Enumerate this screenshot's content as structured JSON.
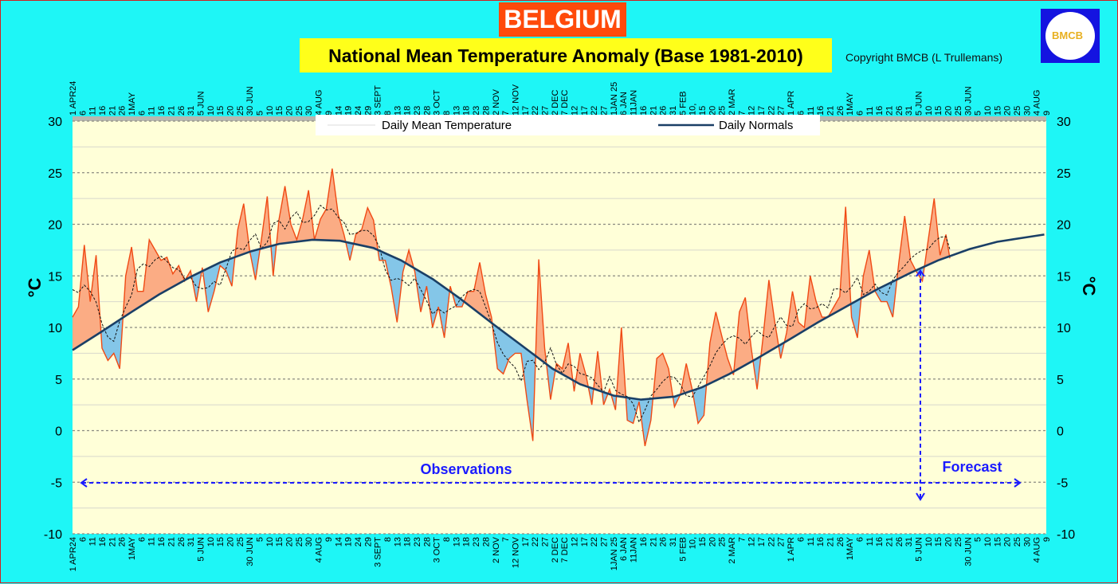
{
  "header": {
    "country": "BELGIUM",
    "title": "National Mean Temperature Anomaly (Base 1981-2010)",
    "copyright": "Copyright BMCB (L Trullemans)",
    "logo_text": "BMCB"
  },
  "colors": {
    "background": "#1ef6f6",
    "plot_bg": "#ffffd8",
    "above_normal": "#fbac84",
    "below_normal": "#84c6e8",
    "temperature_line": "#f04a14",
    "normals_line": "#1a3f66",
    "annotation": "#1a1aff"
  },
  "chart_data": {
    "type": "area",
    "ylabel": "°C",
    "ylim": [
      -10,
      30
    ],
    "yticks": [
      -10,
      -5,
      0,
      5,
      10,
      15,
      20,
      25,
      30
    ],
    "grid": true,
    "legend_position": "top",
    "legend": [
      {
        "label": "Daily Mean Temperature"
      },
      {
        "label": "Daily Normals"
      }
    ],
    "xlim": [
      "2024-04-01",
      "2025-08-09"
    ],
    "x_tick_labels": [
      "1 APR24",
      "6",
      "11",
      "16",
      "21",
      "26",
      "1MAY",
      "6",
      "11",
      "16",
      "21",
      "26",
      "31",
      "5 JUN",
      "10",
      "15",
      "20",
      "25",
      "30 JUN",
      "5",
      "10",
      "15",
      "20",
      "25",
      "30",
      "4 AUG",
      "9",
      "14",
      "19",
      "24",
      "29",
      "3 SEPT",
      "8",
      "13",
      "18",
      "23",
      "28",
      "3 OCT",
      "8",
      "13",
      "18",
      "23",
      "28",
      "2 NOV",
      "7",
      "12 NOV",
      "17",
      "22",
      "27",
      "2 DEC",
      "7 DEC",
      "12",
      "17",
      "22",
      "27",
      "1JAN 25",
      "6 JAN",
      "11JAN",
      "16",
      "21",
      "26",
      "31",
      "5 FEB",
      "10,",
      "15",
      "20",
      "25",
      "2 MAR",
      "7",
      "12",
      "17",
      "22",
      "27",
      "1 APR",
      "6",
      "11",
      "16",
      "21",
      "26",
      "1MAY",
      "6",
      "11",
      "16",
      "21",
      "26",
      "31",
      "5 JUN",
      "10",
      "15",
      "20",
      "25",
      "30 JUN",
      "5",
      "10",
      "15",
      "20",
      "25",
      "30",
      "4 AUG",
      "9"
    ],
    "series": [
      {
        "name": "Daily Mean Temperature",
        "points": [
          [
            "2024-04-01",
            11
          ],
          [
            "2024-04-04",
            12
          ],
          [
            "2024-04-07",
            18
          ],
          [
            "2024-04-10",
            12.5
          ],
          [
            "2024-04-13",
            17
          ],
          [
            "2024-04-16",
            8
          ],
          [
            "2024-04-19",
            6.8
          ],
          [
            "2024-04-22",
            7.5
          ],
          [
            "2024-04-25",
            6
          ],
          [
            "2024-04-28",
            15
          ],
          [
            "2024-05-01",
            17.8
          ],
          [
            "2024-05-04",
            13.5
          ],
          [
            "2024-05-07",
            13.5
          ],
          [
            "2024-05-10",
            18.5
          ],
          [
            "2024-05-13",
            17.5
          ],
          [
            "2024-05-16",
            16.5
          ],
          [
            "2024-05-19",
            16.8
          ],
          [
            "2024-05-22",
            15.2
          ],
          [
            "2024-05-25",
            16
          ],
          [
            "2024-05-28",
            14.5
          ],
          [
            "2024-05-31",
            15.5
          ],
          [
            "2024-06-03",
            12.5
          ],
          [
            "2024-06-06",
            15.8
          ],
          [
            "2024-06-09",
            11.5
          ],
          [
            "2024-06-12",
            13.5
          ],
          [
            "2024-06-15",
            16
          ],
          [
            "2024-06-18",
            15.5
          ],
          [
            "2024-06-21",
            14
          ],
          [
            "2024-06-24",
            19.5
          ],
          [
            "2024-06-27",
            22
          ],
          [
            "2024-06-30",
            17.5
          ],
          [
            "2024-07-03",
            14.6
          ],
          [
            "2024-07-06",
            18.5
          ],
          [
            "2024-07-09",
            22.7
          ],
          [
            "2024-07-12",
            15
          ],
          [
            "2024-07-15",
            20.5
          ],
          [
            "2024-07-18",
            23.7
          ],
          [
            "2024-07-21",
            20
          ],
          [
            "2024-07-24",
            18.5
          ],
          [
            "2024-07-27",
            20.5
          ],
          [
            "2024-07-30",
            23.3
          ],
          [
            "2024-08-02",
            18.5
          ],
          [
            "2024-08-05",
            20.5
          ],
          [
            "2024-08-08",
            21.5
          ],
          [
            "2024-08-11",
            25.4
          ],
          [
            "2024-08-14",
            21
          ],
          [
            "2024-08-17",
            19
          ],
          [
            "2024-08-20",
            16.5
          ],
          [
            "2024-08-23",
            19
          ],
          [
            "2024-08-26",
            19.5
          ],
          [
            "2024-08-29",
            21.6
          ],
          [
            "2024-09-01",
            20.4
          ],
          [
            "2024-09-04",
            16.5
          ],
          [
            "2024-09-07",
            16.5
          ],
          [
            "2024-09-10",
            13.9
          ],
          [
            "2024-09-13",
            10.5
          ],
          [
            "2024-09-16",
            15.4
          ],
          [
            "2024-09-19",
            17.5
          ],
          [
            "2024-09-22",
            15.4
          ],
          [
            "2024-09-25",
            11.5
          ],
          [
            "2024-09-28",
            14
          ],
          [
            "2024-10-01",
            10
          ],
          [
            "2024-10-04",
            12
          ],
          [
            "2024-10-07",
            9
          ],
          [
            "2024-10-10",
            14
          ],
          [
            "2024-10-13",
            12
          ],
          [
            "2024-10-16",
            12
          ],
          [
            "2024-10-19",
            13.5
          ],
          [
            "2024-10-22",
            13.5
          ],
          [
            "2024-10-25",
            16.3
          ],
          [
            "2024-10-28",
            13.2
          ],
          [
            "2024-10-31",
            11
          ],
          [
            "2024-11-03",
            6
          ],
          [
            "2024-11-06",
            5.5
          ],
          [
            "2024-11-09",
            7
          ],
          [
            "2024-11-12",
            7.5
          ],
          [
            "2024-11-15",
            7.5
          ],
          [
            "2024-11-18",
            3
          ],
          [
            "2024-11-21",
            -1
          ],
          [
            "2024-11-24",
            16.6
          ],
          [
            "2024-11-27",
            8
          ],
          [
            "2024-11-30",
            3
          ],
          [
            "2024-12-03",
            6.5
          ],
          [
            "2024-12-06",
            6
          ],
          [
            "2024-12-09",
            8.5
          ],
          [
            "2024-12-12",
            3.8
          ],
          [
            "2024-12-15",
            7.5
          ],
          [
            "2024-12-18",
            5.4
          ],
          [
            "2024-12-21",
            2.5
          ],
          [
            "2024-12-24",
            7.7
          ],
          [
            "2024-12-27",
            2.5
          ],
          [
            "2024-12-30",
            4
          ],
          [
            "2025-01-02",
            2
          ],
          [
            "2025-01-05",
            10
          ],
          [
            "2025-01-08",
            1
          ],
          [
            "2025-01-11",
            0.7
          ],
          [
            "2025-01-14",
            2.8
          ],
          [
            "2025-01-17",
            -1.5
          ],
          [
            "2025-01-20",
            1
          ],
          [
            "2025-01-23",
            7
          ],
          [
            "2025-01-26",
            7.5
          ],
          [
            "2025-01-29",
            6
          ],
          [
            "2025-02-01",
            2.3
          ],
          [
            "2025-02-04",
            3.5
          ],
          [
            "2025-02-07",
            6.5
          ],
          [
            "2025-02-10",
            4
          ],
          [
            "2025-02-13",
            0.7
          ],
          [
            "2025-02-16",
            1.5
          ],
          [
            "2025-02-19",
            8.5
          ],
          [
            "2025-02-22",
            11.5
          ],
          [
            "2025-02-25",
            9.2
          ],
          [
            "2025-02-28",
            7
          ],
          [
            "2025-03-03",
            5.4
          ],
          [
            "2025-03-06",
            11.5
          ],
          [
            "2025-03-09",
            12.9
          ],
          [
            "2025-03-12",
            8
          ],
          [
            "2025-03-15",
            4
          ],
          [
            "2025-03-18",
            9
          ],
          [
            "2025-03-21",
            14.6
          ],
          [
            "2025-03-24",
            10.5
          ],
          [
            "2025-03-27",
            7
          ],
          [
            "2025-03-30",
            9.5
          ],
          [
            "2025-04-02",
            13.5
          ],
          [
            "2025-04-05",
            10.5
          ],
          [
            "2025-04-08",
            10
          ],
          [
            "2025-04-11",
            15
          ],
          [
            "2025-04-14",
            12.5
          ],
          [
            "2025-04-17",
            11
          ],
          [
            "2025-04-20",
            11
          ],
          [
            "2025-04-23",
            12
          ],
          [
            "2025-04-26",
            13
          ],
          [
            "2025-04-29",
            21.7
          ],
          [
            "2025-05-02",
            11
          ],
          [
            "2025-05-05",
            9
          ],
          [
            "2025-05-08",
            15
          ],
          [
            "2025-05-11",
            17.5
          ],
          [
            "2025-05-14",
            13.5
          ],
          [
            "2025-05-17",
            12.5
          ],
          [
            "2025-05-20",
            12.5
          ],
          [
            "2025-05-23",
            11
          ],
          [
            "2025-05-26",
            16.2
          ],
          [
            "2025-05-29",
            20.8
          ],
          [
            "2025-06-01",
            16.5
          ],
          [
            "2025-06-04",
            15.4
          ],
          [
            "2025-06-07",
            14.5
          ],
          [
            "2025-06-10",
            18.5
          ],
          [
            "2025-06-13",
            22.5
          ],
          [
            "2025-06-16",
            17
          ],
          [
            "2025-06-19",
            19
          ],
          [
            "2025-06-21",
            16.7
          ]
        ]
      },
      {
        "name": "Daily Normals",
        "points": [
          [
            "2024-04-01",
            7.8
          ],
          [
            "2024-04-15",
            9.5
          ],
          [
            "2024-05-01",
            11.5
          ],
          [
            "2024-05-15",
            13.2
          ],
          [
            "2024-06-01",
            15.0
          ],
          [
            "2024-06-15",
            16.3
          ],
          [
            "2024-07-01",
            17.4
          ],
          [
            "2024-07-15",
            18.1
          ],
          [
            "2024-08-01",
            18.5
          ],
          [
            "2024-08-15",
            18.4
          ],
          [
            "2024-09-01",
            17.7
          ],
          [
            "2024-09-15",
            16.5
          ],
          [
            "2024-10-01",
            14.7
          ],
          [
            "2024-10-15",
            12.8
          ],
          [
            "2024-11-01",
            10.3
          ],
          [
            "2024-11-15",
            8.3
          ],
          [
            "2024-12-01",
            6.0
          ],
          [
            "2024-12-15",
            4.5
          ],
          [
            "2025-01-01",
            3.4
          ],
          [
            "2025-01-15",
            3.0
          ],
          [
            "2025-02-01",
            3.3
          ],
          [
            "2025-02-15",
            4.2
          ],
          [
            "2025-03-01",
            5.5
          ],
          [
            "2025-03-15",
            7.0
          ],
          [
            "2025-04-01",
            8.9
          ],
          [
            "2025-04-15",
            10.5
          ],
          [
            "2025-05-01",
            12.2
          ],
          [
            "2025-05-15",
            13.7
          ],
          [
            "2025-06-01",
            15.3
          ],
          [
            "2025-06-15",
            16.5
          ],
          [
            "2025-07-01",
            17.6
          ],
          [
            "2025-07-15",
            18.3
          ],
          [
            "2025-08-01",
            18.8
          ],
          [
            "2025-08-08",
            19.0
          ]
        ]
      }
    ],
    "annotations": {
      "observations": "Observations",
      "forecast": "Forecast",
      "forecast_start": "2025-06-06"
    }
  }
}
